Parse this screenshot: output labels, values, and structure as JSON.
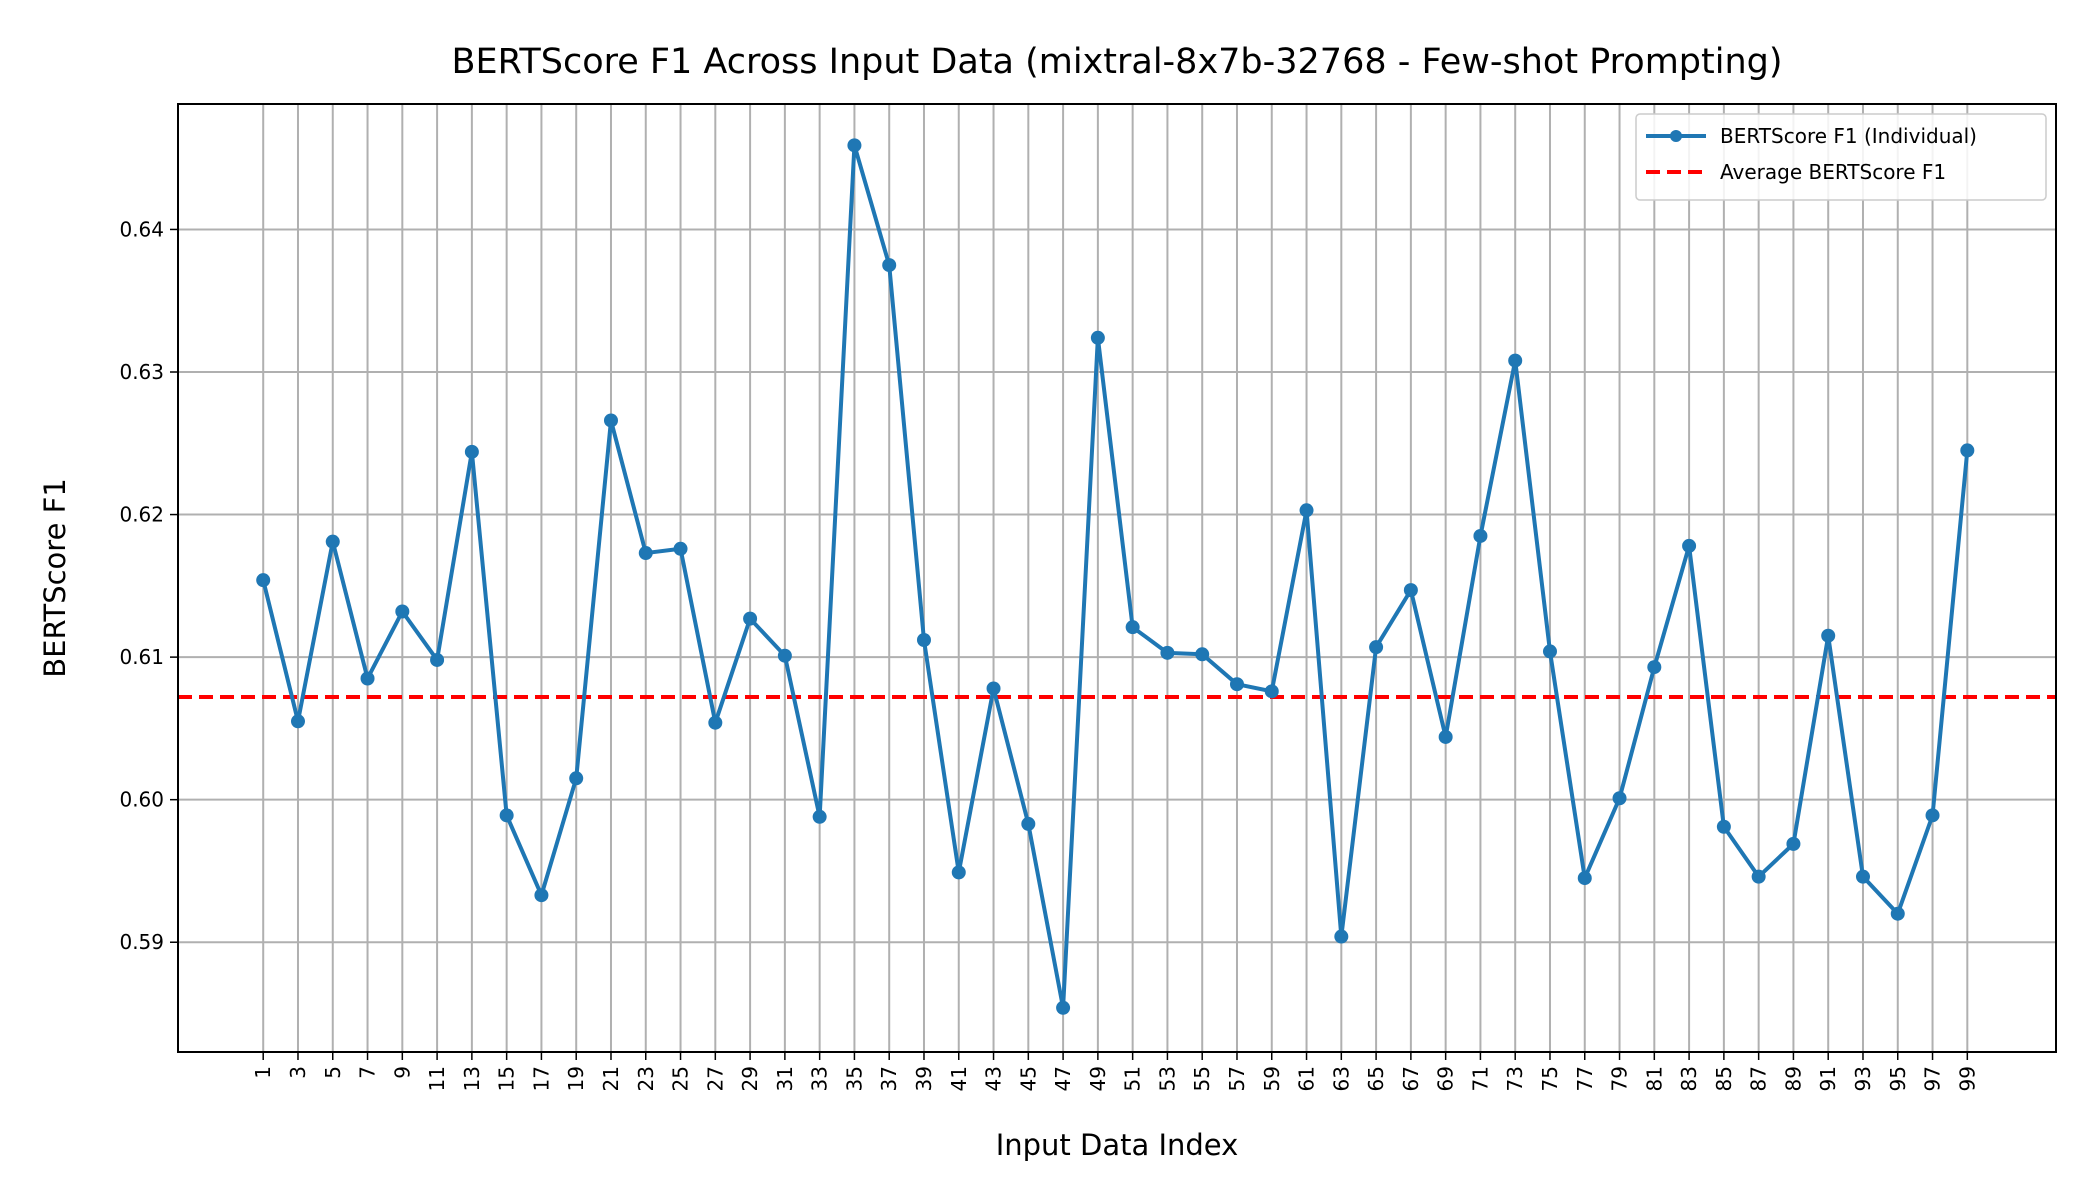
{
  "chart_data": {
    "type": "line",
    "title": "BERTScore F1 Across Input Data (mixtral-8x7b-32768 - Few-shot Prompting)",
    "xlabel": "Input Data Index",
    "ylabel": "BERTScore F1",
    "xticks": [
      1,
      3,
      5,
      7,
      9,
      11,
      13,
      15,
      17,
      19,
      21,
      23,
      25,
      27,
      29,
      31,
      33,
      35,
      37,
      39,
      41,
      43,
      45,
      47,
      49,
      51,
      53,
      55,
      57,
      59,
      61,
      63,
      65,
      67,
      69,
      71,
      73,
      75,
      77,
      79,
      81,
      83,
      85,
      87,
      89,
      91,
      93,
      95,
      97,
      99
    ],
    "yticks": [
      0.59,
      0.6,
      0.61,
      0.62,
      0.63,
      0.64
    ],
    "ytick_labels": [
      "0.59",
      "0.60",
      "0.61",
      "0.62",
      "0.63",
      "0.64"
    ],
    "xlim": [
      -3.9,
      104.1
    ],
    "ylim": [
      0.5823,
      0.6488
    ],
    "grid": true,
    "legend_position": "top-right",
    "series": [
      {
        "name": "BERTScore F1 (Individual)",
        "color": "#1f77b4",
        "style": "line-with-markers",
        "x": [
          1,
          3,
          5,
          7,
          9,
          11,
          13,
          15,
          17,
          19,
          21,
          23,
          25,
          27,
          29,
          31,
          33,
          35,
          37,
          39,
          41,
          43,
          45,
          47,
          49,
          51,
          53,
          55,
          57,
          59,
          61,
          63,
          65,
          67,
          69,
          71,
          73,
          75,
          77,
          79,
          81,
          83,
          85,
          87,
          89,
          91,
          93,
          95,
          97,
          99
        ],
        "values": [
          0.6154,
          0.6055,
          0.6181,
          0.6085,
          0.6132,
          0.6098,
          0.6244,
          0.5989,
          0.5933,
          0.6015,
          0.6266,
          0.6173,
          0.6176,
          0.6054,
          0.6127,
          0.6101,
          0.5988,
          0.6459,
          0.6375,
          0.6112,
          0.5949,
          0.6078,
          0.5983,
          0.5854,
          0.6324,
          0.6121,
          0.6103,
          0.6102,
          0.6081,
          0.6076,
          0.6203,
          0.5904,
          0.6107,
          0.6147,
          0.6044,
          0.6185,
          0.6308,
          0.6104,
          0.5945,
          0.6001,
          0.6093,
          0.6178,
          0.5981,
          0.5946,
          0.5969,
          0.6115,
          0.5946,
          0.592,
          0.5989,
          0.6245
        ]
      },
      {
        "name": "Average BERTScore F1",
        "color": "#ff0000",
        "style": "dashed-horizontal",
        "value": 0.6072
      }
    ]
  }
}
